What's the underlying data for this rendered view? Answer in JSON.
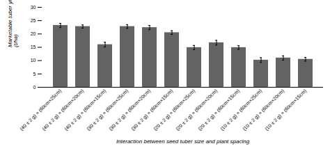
{
  "chart_data": {
    "type": "bar",
    "categories": [
      "(40 ± 2 g) × (60cm×25cm)",
      "(40 ± 2 g) × (60cm×20cm)",
      "(40 ± 2 g) × (60cm×15cm)",
      "(30 ± 2 g) × (60cm×25cm)",
      "(30 ± 2 g) × (60cm×20cm)",
      "(30 ± 2 g) × (60cm×15cm)",
      "(20 ± 2 g) × (60cm×25cm)",
      "(20 ± 2 g) × (60cm×20cm)",
      "(20 ± 2 g) × (60cm×15cm)",
      "(10 ± 2 g) × (60cm×25cm)",
      "(10 ± 2 g) × (60cm×20cm)",
      "(10 ± 2 g) × (60cm×15cm)"
    ],
    "values": [
      23.2,
      22.8,
      16.0,
      22.8,
      22.4,
      20.5,
      14.9,
      16.7,
      14.9,
      10.2,
      11.0,
      10.5
    ],
    "errors": [
      0.8,
      0.6,
      0.9,
      0.7,
      0.8,
      0.7,
      0.8,
      0.9,
      0.7,
      0.9,
      0.8,
      0.7
    ],
    "color": "#636363",
    "ylabel": "Marketable tuber yield\n(t/ha)",
    "xlabel": "Interaction between seed tuber size and plant spacing",
    "ylim": [
      0,
      30
    ],
    "yticks": [
      0,
      5,
      10,
      15,
      20,
      25,
      30
    ]
  }
}
